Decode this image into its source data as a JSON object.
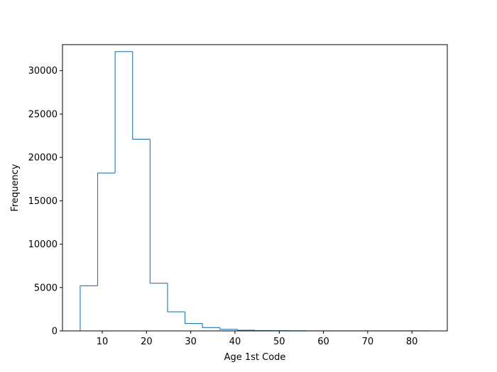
{
  "chart_data": {
    "type": "histogram",
    "style": "step",
    "color": "#1f77b4",
    "xlabel": "Age 1st Code",
    "ylabel": "Frequency",
    "xlim": [
      1,
      88
    ],
    "ylim": [
      0,
      33000
    ],
    "xticks": [
      10,
      20,
      30,
      40,
      50,
      60,
      70,
      80
    ],
    "yticks": [
      0,
      5000,
      10000,
      15000,
      20000,
      25000,
      30000
    ],
    "bin_edges": [
      5,
      8.95,
      12.9,
      16.85,
      20.8,
      24.75,
      28.7,
      32.65,
      36.6,
      40.55,
      44.5,
      48.45,
      52.4,
      56.35,
      60.3,
      64.25,
      68.2,
      72.15,
      76.1,
      80.05,
      84
    ],
    "counts": [
      5200,
      18200,
      32200,
      22100,
      5500,
      2200,
      850,
      380,
      180,
      80,
      40,
      25,
      15,
      10,
      8,
      6,
      5,
      4,
      3,
      2
    ]
  }
}
